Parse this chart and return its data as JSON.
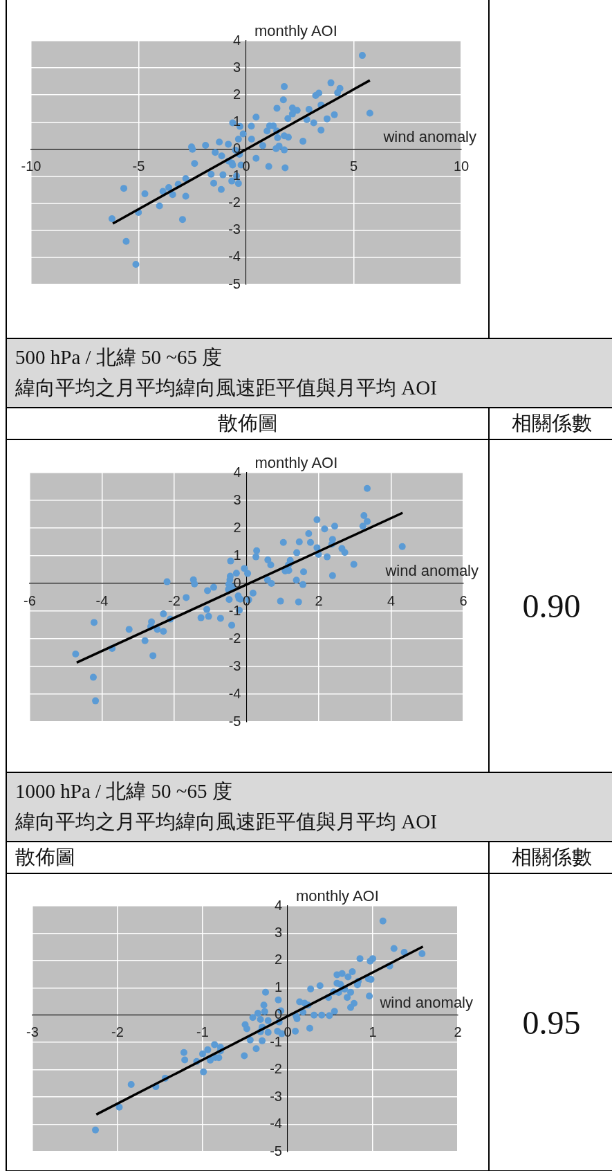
{
  "chart_data": [
    {
      "type": "scatter",
      "xlabel": "wind anomaly",
      "ylabel": "monthly AOI",
      "xlim": [
        -10,
        10
      ],
      "ylim": [
        -5,
        4
      ],
      "xticks": [
        -10,
        -5,
        0,
        5,
        10
      ],
      "yticks": [
        -5,
        -4,
        -3,
        -2,
        -1,
        0,
        1,
        2,
        3,
        4
      ],
      "grid": true,
      "series": [
        {
          "type": "scatter",
          "marker": "circle",
          "color": "#5b9bd5",
          "x": [
            5.4,
            5.75,
            3.94,
            4.36,
            4.25,
            3.23,
            3.38,
            3.48,
            2.92,
            2.82,
            3.14,
            3.76,
            4.1,
            3.48,
            2.64,
            1.77,
            1.73,
            1.43,
            2.15,
            2.37,
            2.15,
            1.94,
            0.46,
            0.24,
            1.09,
            1.26,
            0.97,
            1.42,
            1.77,
            1.96,
            1.46,
            0.25,
            0.77,
            1.53,
            1.39,
            1.77,
            0.46,
            1.05,
            1.81,
            -0.63,
            -0.29,
            -0.14,
            -0.36,
            -0.83,
            -1.25,
            -1.89,
            -2.54,
            -2.5,
            -1.44,
            -1.14,
            -0.5,
            -0.31,
            -0.81,
            -0.66,
            -0.63,
            -0.24,
            -2.4,
            -1.63,
            -1.08,
            -0.45,
            -0.67,
            -0.36,
            -1.51,
            -1.16,
            -2.81,
            -3.16,
            -3.6,
            -3.87,
            -3.42,
            -2.81,
            -4.71,
            -5.69,
            -4.03,
            -5.01,
            -2.96,
            -6.24,
            -5.58,
            -5.13
          ],
          "values": [
            3.46,
            1.33,
            2.45,
            2.24,
            2.08,
            1.98,
            2.07,
            1.63,
            1.47,
            1.09,
            0.97,
            1.12,
            1.27,
            0.7,
            0.29,
            2.31,
            1.82,
            1.51,
            1.52,
            1.43,
            1.3,
            1.13,
            1.18,
            0.85,
            0.86,
            0.86,
            0.67,
            0.67,
            0.49,
            0.44,
            0.42,
            0.37,
            0.13,
            0.11,
            0.02,
            -0.03,
            -0.34,
            -0.64,
            -0.69,
            0.97,
            0.84,
            0.56,
            0.37,
            0.18,
            0.26,
            0.14,
            0.08,
            -0.01,
            -0.12,
            -0.25,
            -0.04,
            -0.19,
            -0.44,
            -0.52,
            -0.59,
            -0.59,
            -0.53,
            -0.93,
            -0.95,
            -0.99,
            -1.18,
            -1.27,
            -1.26,
            -1.49,
            -1.09,
            -1.3,
            -1.42,
            -1.56,
            -1.68,
            -1.74,
            -1.65,
            -1.45,
            -2.1,
            -2.34,
            -2.6,
            -2.57,
            -3.41,
            -4.26
          ]
        },
        {
          "type": "line",
          "color": "#000000",
          "x": [
            -6.2,
            5.75
          ],
          "values": [
            -2.75,
            2.54
          ]
        }
      ]
    },
    {
      "type": "scatter",
      "title": "500 hPa /  北緯 50 ~65  度",
      "subtitle": "緯向平均之月平均緯向風速距平值與月平均 AOI",
      "xlabel": "wind anomaly",
      "ylabel": "monthly AOI",
      "xlim": [
        -6,
        6
      ],
      "ylim": [
        -5,
        4
      ],
      "xticks": [
        -6,
        -4,
        -2,
        0,
        2,
        4,
        6
      ],
      "yticks": [
        -5,
        -4,
        -3,
        -2,
        -1,
        0,
        1,
        2,
        3,
        4
      ],
      "grid": true,
      "annotations": [
        "散佈圖",
        "相關係數",
        "0.90"
      ],
      "series": [
        {
          "type": "scatter",
          "marker": "circle",
          "color": "#5b9bd5",
          "x": [
            3.34,
            3.25,
            3.34,
            3.22,
            1.95,
            2.16,
            2.44,
            1.72,
            2.38,
            2.36,
            1.77,
            1.46,
            1.02,
            1.95,
            1.99,
            2.23,
            2.64,
            2.72,
            4.31,
            2.97,
            2.38,
            1.39,
            1.21,
            1.16,
            1.07,
            1.17,
            1.58,
            1.38,
            1.56,
            1.44,
            0.94,
            0.28,
            0.26,
            0.59,
            0.67,
            0.58,
            0.69,
            -0.06,
            0.03,
            -0.44,
            -0.28,
            -0.45,
            -0.46,
            -0.49,
            -0.39,
            -0.5,
            -0.91,
            -1.08,
            -0.23,
            -0.17,
            -0.21,
            0.06,
            0.18,
            -0.48,
            -0.2,
            -1.47,
            -1.44,
            -2.2,
            -1.67,
            -1.1,
            -1.05,
            -1.26,
            -0.72,
            -0.41,
            -2.3,
            -2.11,
            -2.63,
            -2.65,
            -2.47,
            -2.3,
            -3.25,
            -2.81,
            -2.59,
            -3.72,
            -4.22,
            -4.73,
            -4.24,
            -4.18
          ],
          "values": [
            3.43,
            2.45,
            2.24,
            2.07,
            2.3,
            1.97,
            2.07,
            1.8,
            1.59,
            1.42,
            1.48,
            1.5,
            1.48,
            1.29,
            1.05,
            0.96,
            1.26,
            1.12,
            1.33,
            0.69,
            0.28,
            1.11,
            0.83,
            0.67,
            0.45,
            0.47,
            0.42,
            0.12,
            -0.04,
            -0.67,
            -0.64,
            1.18,
            0.96,
            0.85,
            0.67,
            0.13,
            0.0,
            0.54,
            0.36,
            0.81,
            0.37,
            0.26,
            0.13,
            -0.03,
            -0.12,
            -0.22,
            -0.14,
            -0.26,
            -0.45,
            -0.57,
            -0.54,
            -0.59,
            -0.35,
            -0.58,
            -0.97,
            0.13,
            -0.02,
            0.06,
            -0.51,
            -0.94,
            -1.19,
            -1.24,
            -1.26,
            -1.51,
            -1.1,
            -1.29,
            -1.39,
            -1.56,
            -1.66,
            -1.73,
            -1.66,
            -2.07,
            -2.61,
            -2.35,
            -1.41,
            -2.55,
            -3.39,
            -4.24
          ]
        },
        {
          "type": "line",
          "color": "#000000",
          "x": [
            -4.7,
            4.32
          ],
          "values": [
            -2.86,
            2.55
          ]
        }
      ]
    },
    {
      "type": "scatter",
      "title": "1000 hPa /  北緯 50 ~65  度",
      "subtitle": "緯向平均之月平均緯向風速距平值與月平均 AOI",
      "xlabel": "wind anomaly",
      "ylabel": "monthly AOI",
      "xlim": [
        -3,
        2
      ],
      "ylim": [
        -5,
        4
      ],
      "xticks": [
        -3,
        -2,
        -1,
        0,
        1,
        2
      ],
      "yticks": [
        -5,
        -4,
        -3,
        -2,
        -1,
        0,
        1,
        2,
        3,
        4
      ],
      "grid": true,
      "annotations": [
        "散佈圖",
        "相關係數",
        "0.95"
      ],
      "series": [
        {
          "type": "scatter",
          "marker": "circle",
          "color": "#5b9bd5",
          "x": [
            1.12,
            1.25,
            1.37,
            1.58,
            0.85,
            1.0,
            0.97,
            1.2,
            0.76,
            0.58,
            0.64,
            0.71,
            0.58,
            0.62,
            0.95,
            0.98,
            0.83,
            0.82,
            0.38,
            0.27,
            0.67,
            0.74,
            0.6,
            0.54,
            0.48,
            0.7,
            0.96,
            0.78,
            0.74,
            0.55,
            0.14,
            0.2,
            0.24,
            0.18,
            0.31,
            0.4,
            0.49,
            0.1,
            0.11,
            0.09,
            0.26,
            -0.11,
            -0.08,
            -0.1,
            -0.12,
            -0.07,
            -0.26,
            -0.28,
            -0.27,
            -0.35,
            -0.41,
            -0.32,
            -0.23,
            -0.3,
            -0.32,
            -0.23,
            -0.5,
            -0.48,
            -0.44,
            -0.3,
            -0.37,
            -0.51,
            -0.79,
            -0.79,
            -0.86,
            -0.94,
            -1.0,
            -0.91,
            -0.85,
            -0.81,
            -1.07,
            -1.22,
            -1.21,
            -0.99,
            -1.44,
            -1.55,
            -1.84,
            -1.98,
            -2.26
          ],
          "values": [
            3.45,
            2.44,
            2.3,
            2.25,
            2.07,
            2.07,
            1.98,
            1.8,
            1.59,
            1.48,
            1.52,
            1.4,
            1.17,
            1.13,
            1.33,
            1.31,
            1.24,
            1.11,
            1.08,
            0.96,
            0.95,
            0.84,
            0.83,
            0.85,
            0.65,
            0.65,
            0.7,
            0.43,
            0.28,
            0.14,
            0.49,
            0.44,
            0.37,
            0.11,
            0.0,
            0.0,
            -0.02,
            -0.04,
            -0.13,
            -0.59,
            -0.48,
            0.56,
            0.16,
            -0.25,
            -0.59,
            -0.68,
            0.84,
            0.37,
            0.13,
            0.07,
            -0.09,
            -0.16,
            -0.2,
            -0.44,
            -0.61,
            -0.63,
            -0.35,
            -0.5,
            -0.91,
            -0.94,
            -1.23,
            -1.49,
            -1.18,
            -1.31,
            -1.08,
            -1.27,
            -1.42,
            -1.65,
            -1.55,
            -1.56,
            -1.7,
            -1.37,
            -1.64,
            -2.08,
            -2.31,
            -2.62,
            -2.54,
            -3.37,
            -4.21
          ]
        },
        {
          "type": "line",
          "color": "#000000",
          "x": [
            -2.25,
            1.59
          ],
          "values": [
            -3.64,
            2.51
          ]
        }
      ]
    }
  ]
}
